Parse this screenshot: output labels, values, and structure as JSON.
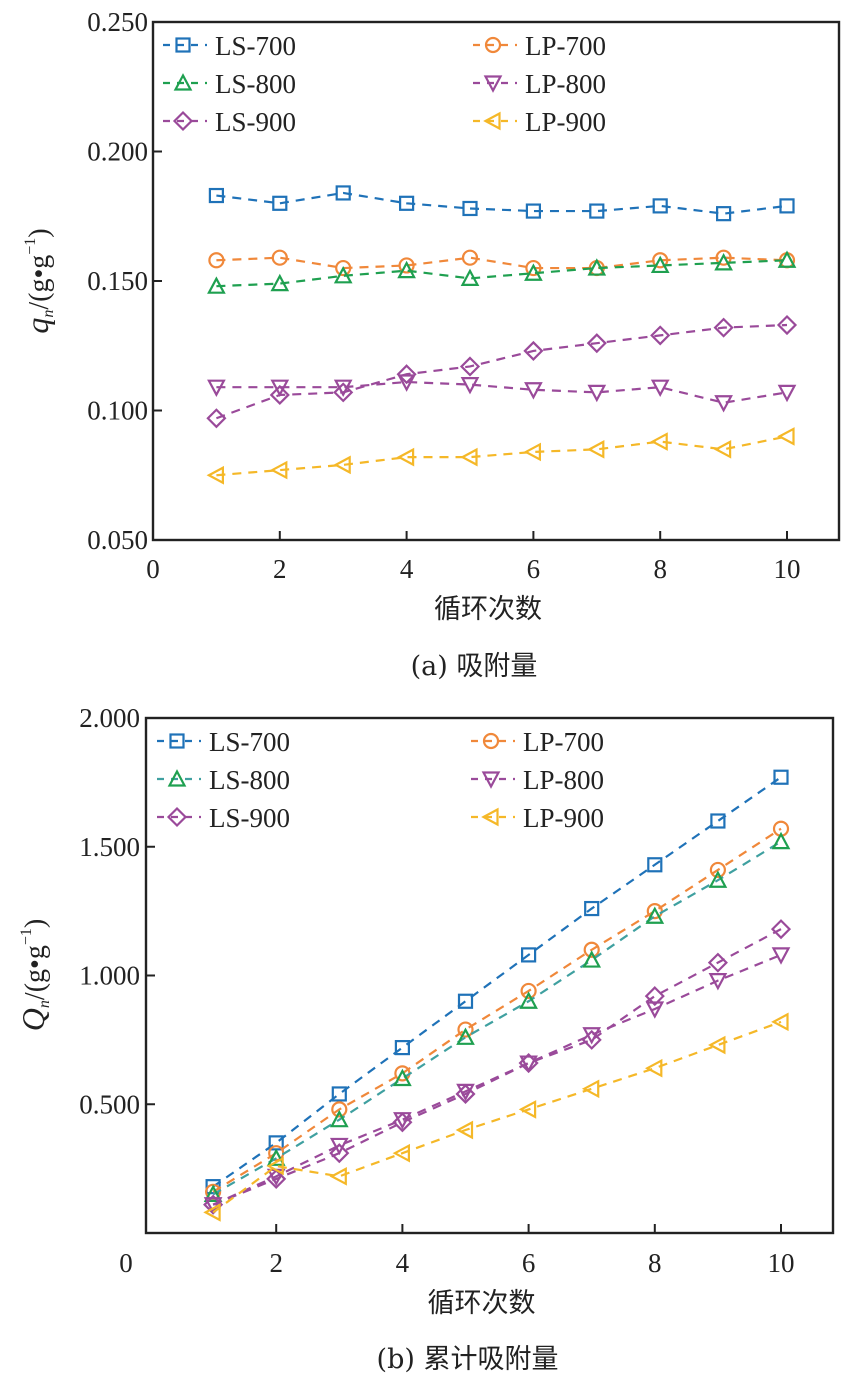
{
  "chart_data": [
    {
      "type": "line",
      "id": "a",
      "caption": "(a) 吸附量",
      "xlabel": "循环次数",
      "ylabel_symbol": "q",
      "ylabel_subscript": "n",
      "ylabel_unit_prefix": "/(g•g",
      "ylabel_unit_sup": "−1",
      "ylabel_unit_suffix": ")",
      "xlim": [
        0,
        10.8
      ],
      "ylim": [
        0.05,
        0.25
      ],
      "xticks": [
        0,
        2,
        4,
        6,
        8,
        10
      ],
      "xtick_labels": [
        "0",
        "2",
        "4",
        "6",
        "8",
        "10"
      ],
      "yticks": [
        0.05,
        0.1,
        0.15,
        0.2,
        0.25
      ],
      "ytick_labels": [
        "0.050",
        "0.100",
        "0.150",
        "0.200",
        "0.250"
      ],
      "grid": false,
      "legend_position": "top-left",
      "x": [
        1,
        2,
        3,
        4,
        5,
        6,
        7,
        8,
        9,
        10
      ],
      "series": [
        {
          "name": "LS-700",
          "marker": "square",
          "color": "#1f72b8",
          "values": [
            0.183,
            0.18,
            0.184,
            0.18,
            0.178,
            0.177,
            0.177,
            0.179,
            0.176,
            0.179
          ]
        },
        {
          "name": "LP-700",
          "marker": "circle",
          "color": "#f0883a",
          "values": [
            0.158,
            0.159,
            0.155,
            0.156,
            0.159,
            0.155,
            0.155,
            0.158,
            0.159,
            0.158
          ]
        },
        {
          "name": "LS-800",
          "marker": "triangle-up",
          "color": "#1fa050",
          "values": [
            0.148,
            0.149,
            0.152,
            0.154,
            0.151,
            0.153,
            0.155,
            0.156,
            0.157,
            0.158
          ]
        },
        {
          "name": "LP-800",
          "marker": "triangle-down",
          "color": "#9a4a9a",
          "values": [
            0.109,
            0.109,
            0.109,
            0.111,
            0.11,
            0.108,
            0.107,
            0.109,
            0.103,
            0.107
          ]
        },
        {
          "name": "LS-900",
          "marker": "diamond",
          "color": "#9a4a9a",
          "values": [
            0.097,
            0.106,
            0.107,
            0.114,
            0.117,
            0.123,
            0.126,
            0.129,
            0.132,
            0.133
          ]
        },
        {
          "name": "LP-900",
          "marker": "triangle-left",
          "color": "#f5b828",
          "values": [
            0.075,
            0.077,
            0.079,
            0.082,
            0.082,
            0.084,
            0.085,
            0.088,
            0.085,
            0.09
          ]
        }
      ]
    },
    {
      "type": "line",
      "id": "b",
      "caption": "(b) 累计吸附量",
      "xlabel": "循环次数",
      "ylabel_symbol": "Q",
      "ylabel_subscript": "n",
      "ylabel_unit_prefix": "/(g•g",
      "ylabel_unit_sup": "−1",
      "ylabel_unit_suffix": ")",
      "xlim": [
        0,
        10.95
      ],
      "ylim": [
        0,
        2.0
      ],
      "xticks": [
        2,
        4,
        6,
        8,
        10
      ],
      "xtick_labels": [
        "2",
        "4",
        "6",
        "8",
        "10"
      ],
      "origin_label": "0",
      "yticks": [
        0.5,
        1.0,
        1.5,
        2.0
      ],
      "ytick_labels": [
        "0.500",
        "1.000",
        "1.500",
        "2.000"
      ],
      "grid": false,
      "legend_position": "top-left",
      "x": [
        1,
        2,
        3,
        4,
        5,
        6,
        7,
        8,
        9,
        10
      ],
      "series": [
        {
          "name": "LS-700",
          "marker": "square",
          "color": "#1f72b8",
          "values": [
            0.18,
            0.35,
            0.54,
            0.72,
            0.9,
            1.08,
            1.26,
            1.43,
            1.6,
            1.77
          ]
        },
        {
          "name": "LP-700",
          "marker": "circle",
          "color": "#f0883a",
          "values": [
            0.16,
            0.31,
            0.48,
            0.62,
            0.79,
            0.94,
            1.1,
            1.25,
            1.41,
            1.57
          ]
        },
        {
          "name": "LS-800",
          "marker": "triangle-up",
          "color": "#1fa050",
          "line_color": "#3fa0a0",
          "values": [
            0.15,
            0.29,
            0.44,
            0.6,
            0.76,
            0.9,
            1.06,
            1.23,
            1.37,
            1.52
          ]
        },
        {
          "name": "LP-800",
          "marker": "triangle-down",
          "color": "#9a4a9a",
          "values": [
            0.11,
            0.22,
            0.34,
            0.44,
            0.55,
            0.66,
            0.77,
            0.87,
            0.98,
            1.08
          ]
        },
        {
          "name": "LS-900",
          "marker": "diamond",
          "color": "#9a4a9a",
          "values": [
            0.11,
            0.21,
            0.31,
            0.43,
            0.54,
            0.66,
            0.75,
            0.92,
            1.05,
            1.18
          ]
        },
        {
          "name": "LP-900",
          "marker": "triangle-left",
          "color": "#f5b828",
          "values": [
            0.08,
            0.26,
            0.22,
            0.31,
            0.4,
            0.48,
            0.56,
            0.64,
            0.73,
            0.82
          ]
        }
      ]
    }
  ]
}
